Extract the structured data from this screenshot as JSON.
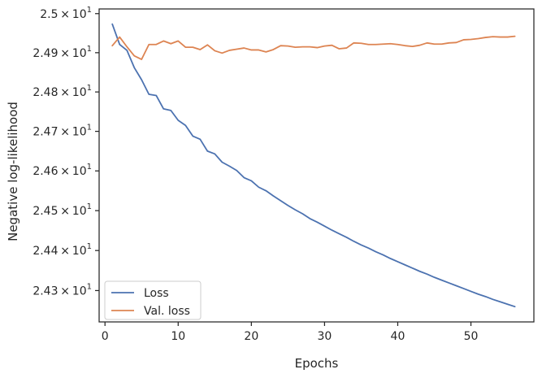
{
  "chart_data": {
    "type": "line",
    "xlabel": "Epochs",
    "ylabel": "Negative log-likelihood",
    "xlim": [
      -0.8,
      58.6
    ],
    "ylim": [
      24.222,
      25.012
    ],
    "x_ticks": [
      0,
      10,
      20,
      30,
      40,
      50
    ],
    "y_ticks": [
      {
        "value": 24.3,
        "base": "2.43",
        "exp": "1"
      },
      {
        "value": 24.4,
        "base": "2.44",
        "exp": "1"
      },
      {
        "value": 24.5,
        "base": "2.45",
        "exp": "1"
      },
      {
        "value": 24.6,
        "base": "2.46",
        "exp": "1"
      },
      {
        "value": 24.7,
        "base": "2.47",
        "exp": "1"
      },
      {
        "value": 24.8,
        "base": "2.48",
        "exp": "1"
      },
      {
        "value": 24.9,
        "base": "2.49",
        "exp": "1"
      },
      {
        "value": 25.0,
        "base": "2.5",
        "exp": "1"
      }
    ],
    "times_symbol": "×",
    "tick_base": "10",
    "y_scale": "log",
    "grid": false,
    "legend_position": "lower-left",
    "x": [
      1,
      2,
      3,
      4,
      5,
      6,
      7,
      8,
      9,
      10,
      11,
      12,
      13,
      14,
      15,
      16,
      17,
      18,
      19,
      20,
      21,
      22,
      23,
      24,
      25,
      26,
      27,
      28,
      29,
      30,
      31,
      32,
      33,
      34,
      35,
      36,
      37,
      38,
      39,
      40,
      41,
      42,
      43,
      44,
      45,
      46,
      47,
      48,
      49,
      50,
      51,
      52,
      53,
      54,
      55,
      56
    ],
    "series": [
      {
        "name": "Loss",
        "color": "#4c72b0",
        "values": [
          24.973,
          24.921,
          24.906,
          24.862,
          24.831,
          24.794,
          24.791,
          24.757,
          24.753,
          24.728,
          24.715,
          24.688,
          24.68,
          24.65,
          24.643,
          24.622,
          24.612,
          24.601,
          24.583,
          24.575,
          24.559,
          24.55,
          24.537,
          24.525,
          24.513,
          24.502,
          24.492,
          24.48,
          24.471,
          24.461,
          24.451,
          24.442,
          24.433,
          24.423,
          24.414,
          24.406,
          24.397,
          24.389,
          24.38,
          24.372,
          24.364,
          24.356,
          24.348,
          24.341,
          24.333,
          24.326,
          24.319,
          24.312,
          24.305,
          24.298,
          24.291,
          24.285,
          24.278,
          24.272,
          24.266,
          24.26
        ]
      },
      {
        "name": "Val. loss",
        "color": "#dd8452",
        "values": [
          24.918,
          24.94,
          24.915,
          24.892,
          24.883,
          24.921,
          24.921,
          24.93,
          24.923,
          24.93,
          24.914,
          24.914,
          24.908,
          24.92,
          24.905,
          24.899,
          24.906,
          24.909,
          24.912,
          24.907,
          24.907,
          24.902,
          24.908,
          24.918,
          24.917,
          24.914,
          24.915,
          24.915,
          24.913,
          24.917,
          24.919,
          24.91,
          24.912,
          24.925,
          24.924,
          24.921,
          24.921,
          24.922,
          24.923,
          24.921,
          24.918,
          24.916,
          24.919,
          24.925,
          24.922,
          24.922,
          24.925,
          24.926,
          24.933,
          24.934,
          24.936,
          24.939,
          24.941,
          24.94,
          24.94,
          24.942
        ]
      }
    ]
  }
}
